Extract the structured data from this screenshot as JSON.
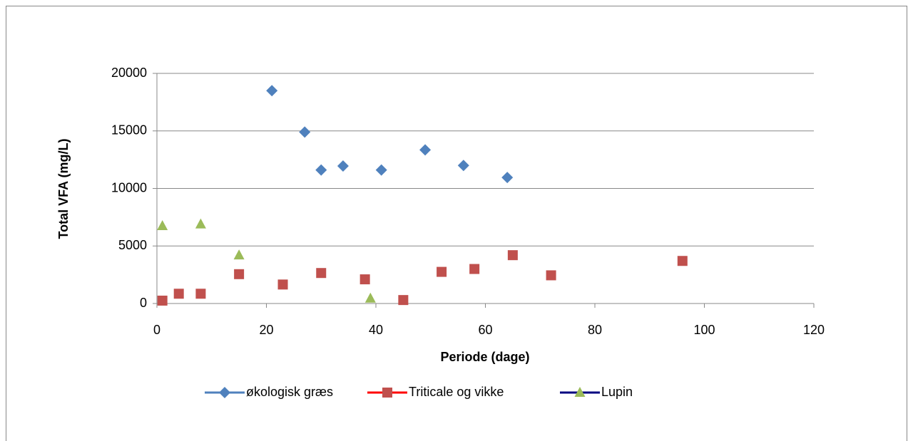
{
  "chart_data": {
    "type": "scatter",
    "x_label": "Periode (dage)",
    "y_label": "Total VFA (mg/L)",
    "xlim": [
      0,
      120
    ],
    "xticks": [
      0,
      20,
      40,
      60,
      80,
      100,
      120
    ],
    "ylim": [
      0,
      20000
    ],
    "yticks": [
      0,
      5000,
      10000,
      15000,
      20000
    ],
    "grid": true,
    "legend": "bottom",
    "series": [
      {
        "name": "økologisk græs",
        "color": "#4f81bd",
        "line_color": "#4f81bd",
        "marker": "diamond",
        "x": [
          21,
          27,
          30,
          34,
          41,
          49,
          56,
          64
        ],
        "values": [
          18500,
          14900,
          11600,
          11950,
          11600,
          13350,
          12000,
          10950
        ]
      },
      {
        "name": "Triticale og vikke",
        "color": "#c0504d",
        "line_color": "#ff0000",
        "marker": "square",
        "x": [
          1,
          4,
          8,
          15,
          23,
          30,
          38,
          45,
          52,
          58,
          65,
          72,
          96
        ],
        "values": [
          250,
          850,
          850,
          2550,
          1650,
          2650,
          2100,
          300,
          2750,
          3000,
          4200,
          2450,
          3700
        ]
      },
      {
        "name": "Lupin",
        "color": "#9bbb59",
        "line_color": "#000080",
        "marker": "triangle",
        "x": [
          1,
          8,
          15,
          39
        ],
        "values": [
          6750,
          6900,
          4200,
          450
        ]
      }
    ]
  }
}
